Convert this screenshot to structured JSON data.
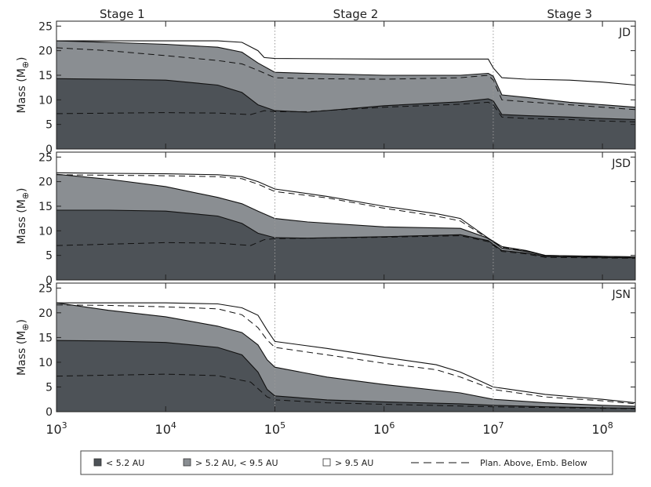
{
  "stages": [
    {
      "label": "Stage 1",
      "x_center": 4000
    },
    {
      "label": "Stage 2",
      "x_center": 550000
    },
    {
      "label": "Stage 3",
      "x_center": 50000000
    }
  ],
  "stage_boundaries": [
    100000,
    10000000
  ],
  "x_axis": {
    "scale": "log",
    "min": 1000,
    "max": 200000000,
    "ticks": [
      {
        "value": 1000,
        "base": "10",
        "exp": "3"
      },
      {
        "value": 10000,
        "base": "10",
        "exp": "4"
      },
      {
        "value": 100000,
        "base": "10",
        "exp": "5"
      },
      {
        "value": 1000000,
        "base": "10",
        "exp": "6"
      },
      {
        "value": 10000000,
        "base": "10",
        "exp": "7"
      },
      {
        "value": 100000000,
        "base": "10",
        "exp": "8"
      }
    ]
  },
  "y_axis": {
    "label_prefix": "Mass  (M",
    "label_sub": "⊕",
    "label_suffix": ")",
    "min": 0,
    "max": 26,
    "ticks": [
      0,
      5,
      10,
      15,
      20,
      25
    ]
  },
  "legend": {
    "items": [
      {
        "label": "< 5.2 AU",
        "color": "#4d5257",
        "kind": "swatch"
      },
      {
        "label": "> 5.2 AU, < 9.5 AU",
        "color": "#8a8e92",
        "kind": "swatch"
      },
      {
        "label": "> 9.5 AU",
        "color": "#ffffff",
        "kind": "swatch"
      },
      {
        "label": "Plan. Above, Emb. Below",
        "kind": "dash"
      }
    ]
  },
  "colors": {
    "inner": "#4d5257",
    "middle": "#8a8e92",
    "outer": "#ffffff",
    "line": "#111111"
  },
  "chart_data": [
    {
      "type": "area",
      "panel_label": "JD",
      "series": [
        {
          "name": "< 5.2 AU",
          "x": [
            1000,
            3000,
            10000,
            30000,
            50000,
            70000,
            100000,
            200000,
            1000000,
            5000000,
            9000000,
            10000000,
            12000000,
            20000000,
            50000000,
            100000000,
            200000000
          ],
          "y": [
            14.3,
            14.2,
            14.0,
            13.0,
            11.5,
            9.0,
            7.8,
            7.5,
            8.8,
            9.6,
            10.2,
            9.8,
            7.0,
            6.8,
            6.5,
            6.2,
            6.0
          ]
        },
        {
          "name": "> 5.2 AU, < 9.5 AU",
          "x": [
            1000,
            3000,
            10000,
            30000,
            50000,
            70000,
            100000,
            200000,
            1000000,
            5000000,
            9000000,
            10000000,
            12000000,
            20000000,
            50000000,
            100000000,
            200000000
          ],
          "y": [
            22.0,
            21.7,
            21.3,
            20.7,
            19.7,
            17.5,
            15.6,
            15.4,
            15.0,
            15.0,
            15.4,
            14.8,
            11.0,
            10.5,
            9.5,
            9.0,
            8.5
          ]
        },
        {
          "name": "> 9.5 AU",
          "x": [
            1000,
            10000,
            30000,
            50000,
            70000,
            80000,
            100000,
            1000000,
            9000000,
            10000000,
            12000000,
            20000000,
            50000000,
            100000000,
            200000000
          ],
          "y": [
            22.0,
            22.0,
            22.0,
            21.7,
            20.0,
            18.6,
            18.4,
            18.3,
            18.3,
            16.5,
            14.5,
            14.2,
            14.0,
            13.6,
            13.0
          ]
        },
        {
          "name": "Plan. Above, Emb. Below",
          "group": "lower",
          "x": [
            1000,
            10000,
            30000,
            60000,
            80000,
            100000,
            200000,
            1000000,
            5000000,
            9000000,
            10000000,
            12000000,
            20000000,
            50000000,
            100000000,
            200000000
          ],
          "y": [
            7.2,
            7.4,
            7.3,
            7.0,
            7.8,
            7.6,
            7.6,
            8.5,
            9.1,
            9.5,
            9.0,
            6.5,
            6.2,
            6.0,
            5.7,
            5.5
          ]
        },
        {
          "name": "Plan. Above, Emb. Below",
          "group": "upper",
          "x": [
            1000,
            3000,
            10000,
            30000,
            50000,
            70000,
            100000,
            200000,
            1000000,
            5000000,
            9000000,
            10000000,
            12000000,
            20000000,
            50000000,
            100000000,
            200000000
          ],
          "y": [
            20.6,
            20.0,
            19.0,
            18.0,
            17.3,
            16.0,
            14.5,
            14.3,
            14.2,
            14.5,
            15.0,
            14.0,
            10.0,
            9.6,
            9.0,
            8.5,
            8.0
          ]
        }
      ]
    },
    {
      "type": "area",
      "panel_label": "JSD",
      "series": [
        {
          "name": "< 5.2 AU",
          "x": [
            1000,
            3000,
            10000,
            30000,
            50000,
            70000,
            100000,
            200000,
            1000000,
            5000000,
            9000000,
            12000000,
            20000000,
            30000000,
            50000000,
            100000000,
            200000000
          ],
          "y": [
            14.2,
            14.2,
            14.0,
            13.0,
            11.5,
            9.5,
            8.6,
            8.5,
            8.8,
            9.2,
            8.0,
            6.0,
            5.5,
            4.8,
            4.7,
            4.6,
            4.5
          ]
        },
        {
          "name": "> 5.2 AU, < 9.5 AU",
          "x": [
            1000,
            3000,
            10000,
            30000,
            50000,
            70000,
            100000,
            200000,
            1000000,
            5000000,
            9000000,
            12000000,
            20000000,
            30000000,
            50000000,
            100000000,
            200000000
          ],
          "y": [
            21.5,
            20.5,
            19.0,
            16.8,
            15.5,
            14.0,
            12.5,
            11.8,
            10.8,
            10.5,
            8.5,
            6.5,
            5.8,
            5.0,
            4.9,
            4.8,
            4.7
          ]
        },
        {
          "name": "> 9.5 AU",
          "x": [
            1000,
            3000,
            10000,
            30000,
            50000,
            70000,
            100000,
            300000,
            1000000,
            3000000,
            5000000,
            9000000,
            12000000,
            20000000,
            30000000,
            50000000,
            100000000,
            200000000
          ],
          "y": [
            21.8,
            21.7,
            21.6,
            21.4,
            21.0,
            20.0,
            18.5,
            17.0,
            15.0,
            13.5,
            12.5,
            8.5,
            6.8,
            6.0,
            5.0,
            4.9,
            4.8,
            4.7
          ]
        },
        {
          "name": "Plan. Above, Emb. Below",
          "group": "lower",
          "x": [
            1000,
            10000,
            30000,
            60000,
            80000,
            100000,
            1000000,
            5000000,
            9000000,
            12000000,
            20000000,
            30000000,
            200000000
          ],
          "y": [
            7.0,
            7.6,
            7.5,
            7.0,
            8.2,
            8.4,
            8.7,
            9.0,
            7.8,
            5.8,
            5.3,
            4.6,
            4.4
          ]
        },
        {
          "name": "Plan. Above, Emb. Below",
          "group": "upper",
          "x": [
            1000,
            3000,
            10000,
            30000,
            50000,
            70000,
            100000,
            300000,
            1000000,
            3000000,
            5000000,
            9000000,
            12000000,
            20000000,
            30000000,
            200000000
          ],
          "y": [
            21.4,
            21.3,
            21.2,
            21.0,
            20.6,
            19.5,
            18.0,
            16.7,
            14.6,
            13.0,
            12.0,
            8.4,
            6.7,
            5.9,
            4.9,
            4.6
          ]
        }
      ]
    },
    {
      "type": "area",
      "panel_label": "JSN",
      "series": [
        {
          "name": "< 5.2 AU",
          "x": [
            1000,
            3000,
            10000,
            30000,
            50000,
            70000,
            85000,
            100000,
            300000,
            1000000,
            5000000,
            10000000,
            30000000,
            100000000,
            200000000
          ],
          "y": [
            14.4,
            14.3,
            14.0,
            13.0,
            11.5,
            8.0,
            4.5,
            3.2,
            2.4,
            2.0,
            1.6,
            1.3,
            1.0,
            0.8,
            0.7
          ]
        },
        {
          "name": "> 5.2 AU, < 9.5 AU",
          "x": [
            1000,
            3000,
            10000,
            30000,
            50000,
            70000,
            85000,
            100000,
            300000,
            1000000,
            5000000,
            10000000,
            30000000,
            100000000,
            200000000
          ],
          "y": [
            22.0,
            20.5,
            19.2,
            17.3,
            16.0,
            13.5,
            10.5,
            9.0,
            7.0,
            5.5,
            3.8,
            2.5,
            1.8,
            1.3,
            1.1
          ]
        },
        {
          "name": "> 9.5 AU",
          "x": [
            1000,
            10000,
            30000,
            50000,
            70000,
            85000,
            100000,
            300000,
            1000000,
            3000000,
            5000000,
            8000000,
            10000000,
            30000000,
            100000000,
            200000000
          ],
          "y": [
            22.0,
            22.0,
            21.8,
            21.0,
            19.5,
            16.5,
            14.2,
            12.8,
            11.0,
            9.5,
            8.0,
            6.0,
            5.0,
            3.5,
            2.5,
            1.8
          ]
        },
        {
          "name": "Plan. Above, Emb. Below",
          "group": "lower",
          "x": [
            1000,
            10000,
            30000,
            60000,
            85000,
            100000,
            300000,
            1000000,
            10000000,
            100000000,
            200000000
          ],
          "y": [
            7.2,
            7.6,
            7.3,
            6.0,
            3.0,
            2.4,
            1.8,
            1.5,
            1.0,
            0.7,
            0.6
          ]
        },
        {
          "name": "Plan. Above, Emb. Below",
          "group": "upper",
          "x": [
            1000,
            3000,
            10000,
            30000,
            50000,
            70000,
            85000,
            100000,
            300000,
            1000000,
            3000000,
            5000000,
            10000000,
            30000000,
            100000000,
            200000000
          ],
          "y": [
            21.6,
            21.5,
            21.2,
            20.8,
            19.6,
            17.0,
            14.5,
            13.0,
            11.5,
            9.8,
            8.5,
            7.0,
            4.5,
            3.0,
            2.2,
            1.6
          ]
        }
      ]
    }
  ]
}
